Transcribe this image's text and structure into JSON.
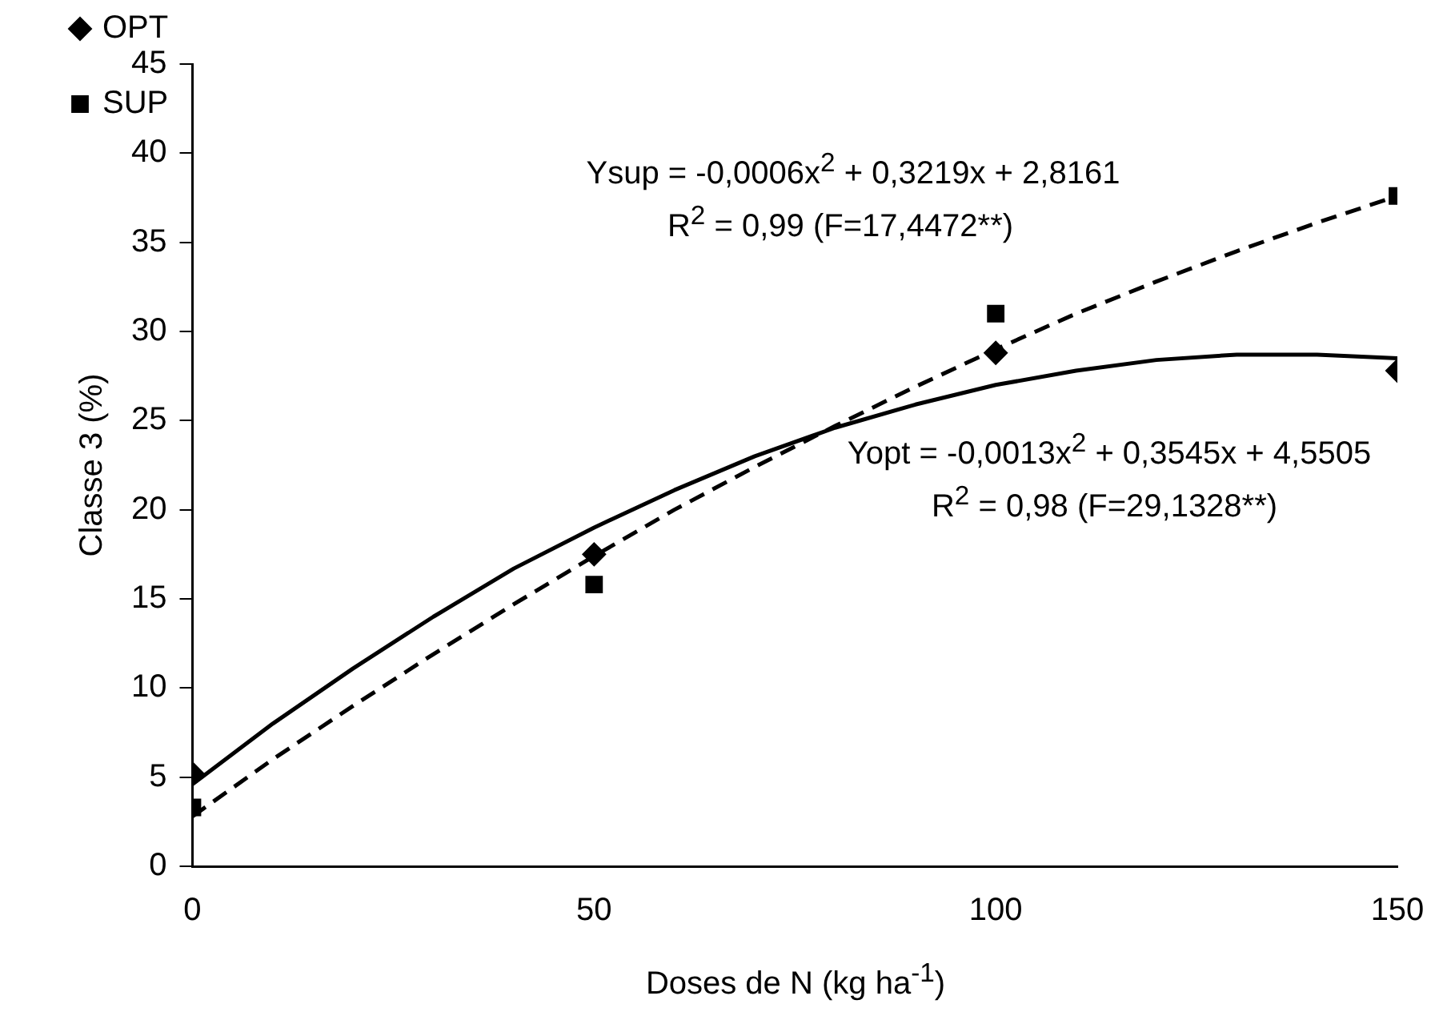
{
  "chart_data": {
    "type": "scatter",
    "xlabel": "Doses de N (kg ha$^{-1}$)",
    "ylabel": "Classe 3 (%)",
    "xlim": [
      0,
      150
    ],
    "xticks": [
      0,
      50,
      100,
      150
    ],
    "ylim": [
      0,
      45
    ],
    "yticks": [
      0,
      5,
      10,
      15,
      20,
      25,
      30,
      35,
      40,
      45
    ],
    "grid": false,
    "legend": "top left",
    "series": [
      {
        "name": "OPT",
        "marker": "diamond",
        "color": "#000000",
        "x": [
          0,
          50,
          100,
          150
        ],
        "values": [
          5.2,
          17.5,
          28.8,
          27.8
        ]
      },
      {
        "name": "SUP",
        "marker": "square",
        "color": "#000000",
        "x": [
          0,
          50,
          100,
          150
        ],
        "values": [
          3.3,
          15.8,
          31.0,
          37.6
        ]
      },
      {
        "type": "line",
        "marker": "none",
        "line_style": "solid",
        "color": "#000000",
        "x": [
          0,
          10,
          20,
          30,
          40,
          50,
          60,
          70,
          80,
          90,
          100,
          110,
          120,
          130,
          140,
          150
        ],
        "values": [
          4.6,
          8.0,
          11.1,
          14.0,
          16.7,
          19.0,
          21.1,
          23.0,
          24.6,
          25.9,
          27.0,
          27.8,
          28.4,
          28.7,
          28.7,
          28.5
        ]
      },
      {
        "type": "line",
        "marker": "none",
        "line_style": "dashed",
        "color": "#000000",
        "x": [
          0,
          10,
          20,
          30,
          40,
          50,
          60,
          70,
          80,
          90,
          100,
          110,
          120,
          130,
          140,
          150
        ],
        "values": [
          2.8,
          6.0,
          9.0,
          11.9,
          14.7,
          17.4,
          20.0,
          22.4,
          24.7,
          26.9,
          29.0,
          31.0,
          32.8,
          34.5,
          36.1,
          37.6
        ]
      }
    ],
    "annotations": [
      "Ysup = -0,0006x$^{2}$ + 0,3219x + 2,8161",
      "R$^{2}$ = 0,99 (F=17,4472**)",
      "Yopt = -0,0013x$^{2}$ + 0,3545x + 4,5505",
      "R$^{2}$ = 0,98 (F=29,1328**)"
    ]
  }
}
